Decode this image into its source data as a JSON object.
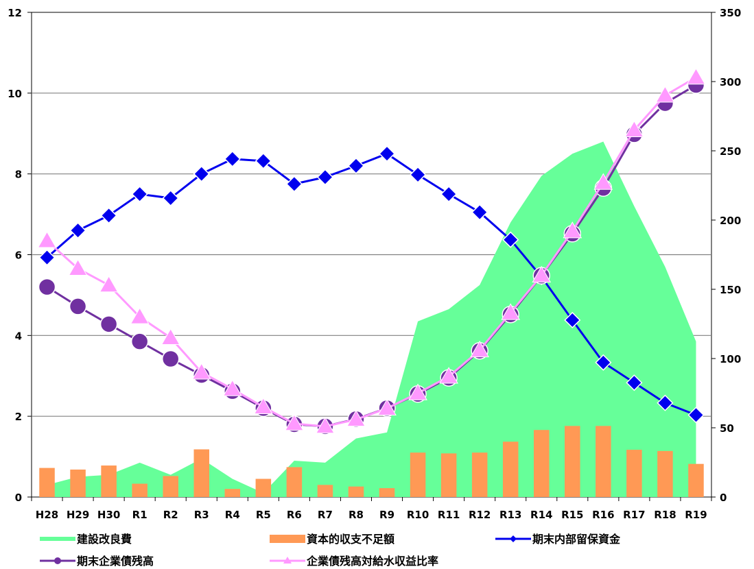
{
  "chart_data": {
    "type": "bar",
    "title": "",
    "xlabel": "",
    "ylabel": "",
    "y2label": "",
    "categories": [
      "H28",
      "H29",
      "H30",
      "R1",
      "R2",
      "R3",
      "R4",
      "R5",
      "R6",
      "R7",
      "R8",
      "R9",
      "R10",
      "R11",
      "R12",
      "R13",
      "R14",
      "R15",
      "R16",
      "R17",
      "R18",
      "R19"
    ],
    "ylim": [
      0,
      12
    ],
    "yticks": [
      "0",
      "2",
      "4",
      "6",
      "8",
      "10",
      "12"
    ],
    "y2lim": [
      0,
      350
    ],
    "y2ticks": [
      "0",
      "50",
      "100",
      "150",
      "200",
      "250",
      "300",
      "350"
    ],
    "grid": true,
    "legend_position": "bottom",
    "series": [
      {
        "name": "建設改良費",
        "kind": "area",
        "axis": "left",
        "color": "#66ff99",
        "values": [
          0.3,
          0.5,
          0.55,
          0.85,
          0.55,
          0.95,
          0.45,
          0.1,
          0.9,
          0.85,
          1.45,
          1.6,
          4.35,
          4.65,
          5.25,
          6.8,
          7.95,
          8.5,
          8.8,
          7.2,
          5.7,
          3.85
        ]
      },
      {
        "name": "資本的収支不足額",
        "kind": "bar",
        "axis": "left",
        "color": "#ff9955",
        "values": [
          0.72,
          0.68,
          0.78,
          0.33,
          0.52,
          1.18,
          0.2,
          0.45,
          0.74,
          0.3,
          0.26,
          0.22,
          1.1,
          1.08,
          1.1,
          1.37,
          1.66,
          1.76,
          1.76,
          1.17,
          1.14,
          0.82
        ]
      },
      {
        "name": "期末内部留保資金",
        "kind": "line",
        "marker": "diamond",
        "axis": "left",
        "color": "#0000ee",
        "values": [
          5.93,
          6.6,
          6.97,
          7.5,
          7.4,
          8.0,
          8.37,
          8.32,
          7.75,
          7.92,
          8.2,
          8.5,
          7.98,
          7.5,
          7.05,
          6.37,
          5.45,
          4.38,
          3.33,
          2.83,
          2.33,
          2.03
        ]
      },
      {
        "name": "期末企業債残高",
        "kind": "line",
        "marker": "circle",
        "axis": "left",
        "color": "#7030a0",
        "values": [
          5.2,
          4.72,
          4.28,
          3.85,
          3.42,
          3.02,
          2.62,
          2.2,
          1.8,
          1.75,
          1.93,
          2.2,
          2.55,
          2.95,
          3.62,
          4.52,
          5.48,
          6.52,
          7.65,
          8.98,
          9.75,
          10.2
        ]
      },
      {
        "name": "企業債残高対給水収益比率",
        "kind": "line",
        "marker": "triangle",
        "axis": "right",
        "color": "#ff99ff",
        "values": [
          185,
          165,
          153,
          130,
          115,
          90,
          78,
          65,
          53,
          51,
          56,
          64,
          75,
          87,
          106,
          133,
          160,
          192,
          227,
          265,
          290,
          303
        ]
      }
    ]
  }
}
